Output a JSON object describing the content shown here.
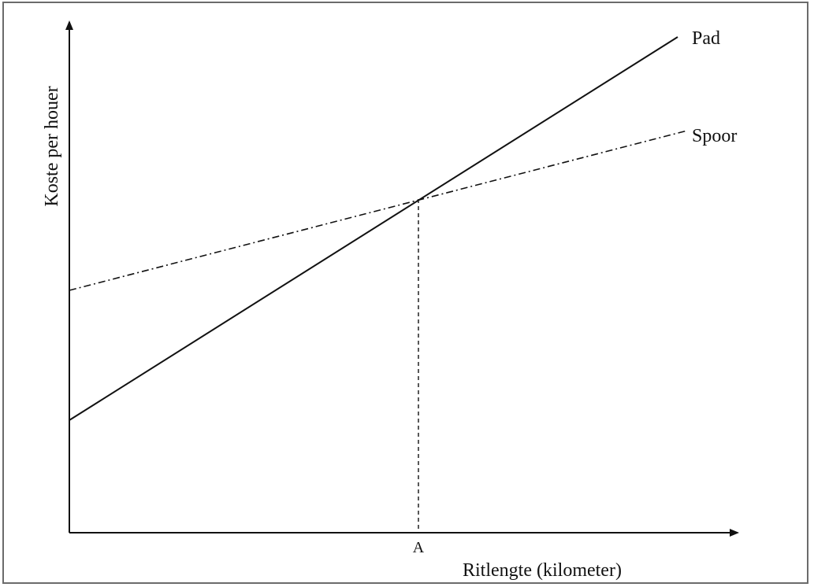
{
  "diagram": {
    "y_axis_label": "Koste per houer",
    "x_axis_label": "Ritlengte (kilometer)",
    "x_marker_label": "A",
    "lines": [
      {
        "name": "Pad",
        "style": "solid"
      },
      {
        "name": "Spoor",
        "style": "dash-dot"
      }
    ],
    "intersection_marker": "A",
    "colors": {
      "ink": "#111111",
      "frame": "#6b6b6b",
      "background": "#ffffff"
    }
  }
}
